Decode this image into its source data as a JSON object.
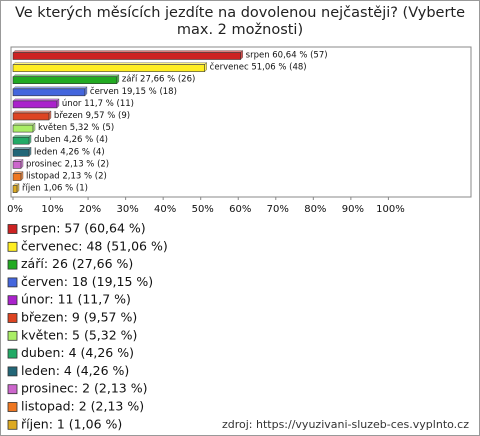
{
  "chart_data": {
    "type": "bar",
    "orientation": "horizontal",
    "title": "Ve kterých měsících jezdíte na dovolenou nejčastěji? (Vyberte max. 2 možnosti)",
    "categories": [
      "srpen",
      "červenec",
      "září",
      "červen",
      "únor",
      "březen",
      "květen",
      "duben",
      "leden",
      "prosinec",
      "listopad",
      "říjen"
    ],
    "values": [
      60.64,
      51.06,
      27.66,
      19.15,
      11.7,
      9.57,
      5.32,
      4.26,
      4.26,
      2.13,
      2.13,
      1.06
    ],
    "value_labels": [
      "srpen 60,64 % (57)",
      "červenec 51,06 % (48)",
      "září 27,66 % (26)",
      "červen 19,15 % (18)",
      "únor 11,7 % (11)",
      "březen 9,57 % (9)",
      "květen 5,32 % (5)",
      "duben 4,26 % (4)",
      "leden 4,26 % (4)",
      "prosinec 2,13 % (2)",
      "listopad 2,13 % (2)",
      "říjen 1,06 % (1)"
    ],
    "legend_labels": [
      "srpen: 57 (60,64 %)",
      "červenec: 48 (51,06 %)",
      "září: 26 (27,66 %)",
      "červen: 18 (19,15 %)",
      "únor: 11 (11,7 %)",
      "březen: 9 (9,57 %)",
      "květen: 5 (5,32 %)",
      "duben: 4 (4,26 %)",
      "leden: 4 (4,26 %)",
      "prosinec: 2 (2,13 %)",
      "listopad: 2 (2,13 %)",
      "říjen: 1 (1,06 %)"
    ],
    "colors": [
      "#cc2222",
      "#ffee22",
      "#22aa22",
      "#4466dd",
      "#aa22cc",
      "#dd4422",
      "#aaee66",
      "#22aa66",
      "#226677",
      "#cc66cc",
      "#ee7722",
      "#ddaa22"
    ],
    "xlim": [
      0,
      122
    ],
    "xticks": [
      {
        "value": 0,
        "label": "0%"
      },
      {
        "value": 10,
        "label": "10%"
      },
      {
        "value": 20,
        "label": "20%"
      },
      {
        "value": 30,
        "label": "30%"
      },
      {
        "value": 40,
        "label": "40%"
      },
      {
        "value": 50,
        "label": "50%"
      },
      {
        "value": 60,
        "label": "60%"
      },
      {
        "value": 70,
        "label": "70%"
      },
      {
        "value": 80,
        "label": "80%"
      },
      {
        "value": 90,
        "label": "90%"
      },
      {
        "value": 100,
        "label": "100%"
      }
    ],
    "source": "zdroj: https://vyuzivani-sluzeb-ces.vyplnto.cz"
  }
}
